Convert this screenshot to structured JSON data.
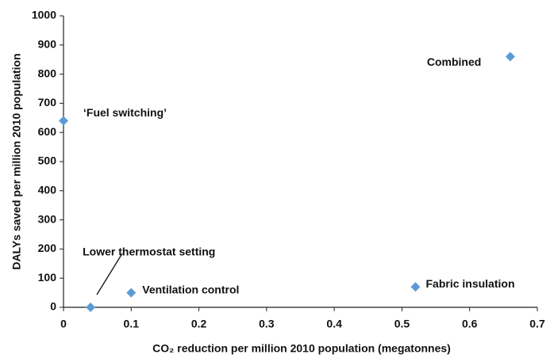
{
  "chart_data": {
    "type": "scatter",
    "x_label": "CO₂ reduction per million 2010 population (megatonnes)",
    "y_label": "DALYs saved per million 2010 population",
    "point_labels": [
      "‘Fuel switching’",
      "Lower thermostat setting",
      "Ventilation control",
      "Fabric insulation",
      "Combined"
    ],
    "x": [
      0,
      0.04,
      0.1,
      0.52,
      0.66
    ],
    "values": [
      640,
      0,
      50,
      70,
      860
    ],
    "color": "#5b9bd5",
    "xlim": [
      0,
      0.7
    ],
    "xticks": [
      0,
      0.1,
      0.2,
      0.3,
      0.4,
      0.5,
      0.6,
      0.7
    ],
    "ylim": [
      0,
      1000
    ],
    "yticks": [
      0,
      100,
      200,
      300,
      400,
      500,
      600,
      700,
      800,
      900,
      1000
    ],
    "grid": false
  }
}
